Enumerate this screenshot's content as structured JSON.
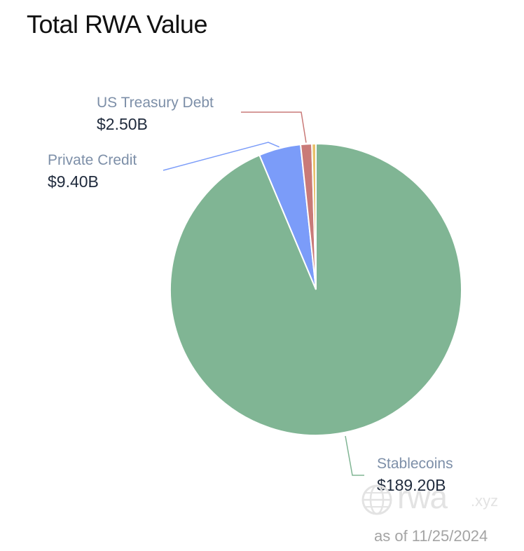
{
  "title": "Total RWA Value",
  "as_of": "as of 11/25/2024",
  "watermark": {
    "brand": "rwa",
    "suffix": ".xyz",
    "icon": "globe-icon"
  },
  "chart_data": {
    "type": "pie",
    "title": "Total RWA Value",
    "unit": "B USD",
    "slices": [
      {
        "name": "Stablecoins",
        "value": 189.2,
        "label": "$189.20B",
        "color": "#80b594"
      },
      {
        "name": "Private Credit",
        "value": 9.4,
        "label": "$9.40B",
        "color": "#7b9cf9"
      },
      {
        "name": "US Treasury Debt",
        "value": 2.5,
        "label": "$2.50B",
        "color": "#c97a78"
      },
      {
        "name": "",
        "value": 0.9,
        "label": "",
        "color": "#e8c06a"
      }
    ]
  }
}
